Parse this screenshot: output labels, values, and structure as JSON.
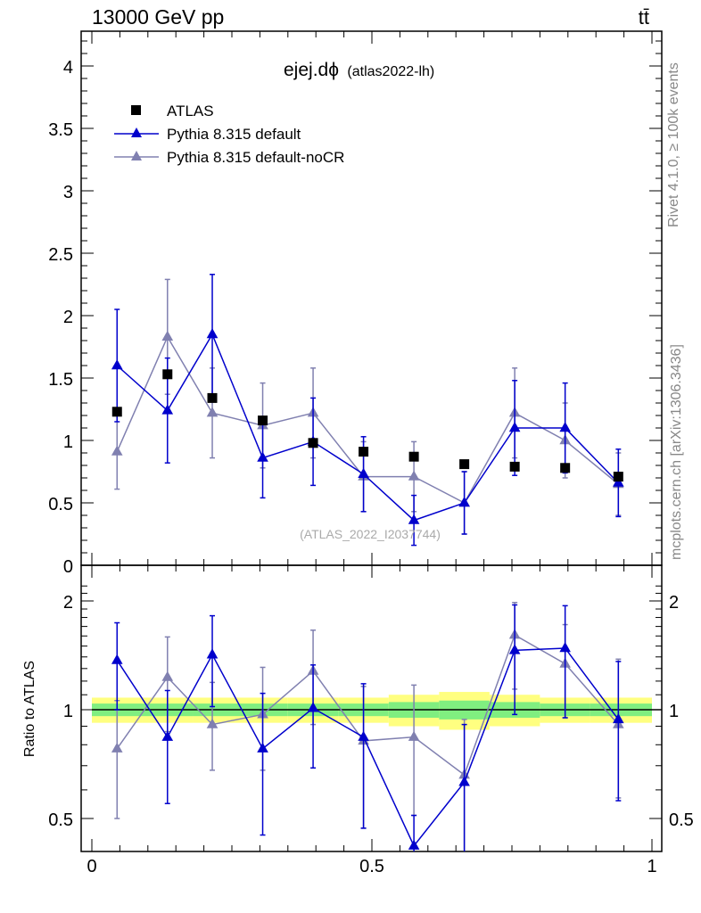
{
  "header": {
    "energy_label": "13000 GeV pp",
    "process_label": "tt̄"
  },
  "side_labels": {
    "rivet": "Rivet 4.1.0, ≥ 100k events",
    "mcplots": "mcplots.cern.ch [arXiv:1306.3436]"
  },
  "colors": {
    "data": "#000000",
    "default": "#0000cc",
    "nocr": "#8080b0",
    "band_inner": "#80ee80",
    "band_outer": "#ffff80"
  },
  "chart_data": [
    {
      "type": "scatter",
      "title": "ejej.dϕ",
      "subtitle": "(atlas2022-lh)",
      "watermark": "(ATLAS_2022_I2037744)",
      "xlabel": "",
      "ylabel": "",
      "xlim": [
        0,
        1
      ],
      "ylim": [
        0,
        4.3
      ],
      "yticks": [
        0,
        0.5,
        1,
        1.5,
        2,
        2.5,
        3,
        3.5,
        4
      ],
      "ytick_labels": [
        "0",
        "0.5",
        "1",
        "1.5",
        "2",
        "2.5",
        "3",
        "3.5",
        "4"
      ],
      "legend_position": "top-left",
      "x": [
        0.045,
        0.135,
        0.215,
        0.305,
        0.395,
        0.485,
        0.575,
        0.665,
        0.755,
        0.845,
        0.94
      ],
      "series": [
        {
          "name": "ATLAS",
          "marker": "square",
          "values": [
            1.23,
            1.53,
            1.34,
            1.16,
            0.98,
            0.91,
            0.87,
            0.81,
            0.79,
            0.78,
            0.71
          ]
        },
        {
          "name": "Pythia 8.315 default",
          "marker": "triangle",
          "values": [
            1.6,
            1.24,
            1.85,
            0.86,
            0.99,
            0.73,
            0.36,
            0.5,
            1.1,
            1.1,
            0.66
          ],
          "errors": [
            0.45,
            0.42,
            0.48,
            0.32,
            0.35,
            0.3,
            0.2,
            0.25,
            0.38,
            0.36,
            0.27
          ]
        },
        {
          "name": "Pythia 8.315 default-noCR",
          "marker": "triangle",
          "values": [
            0.91,
            1.83,
            1.22,
            1.12,
            1.22,
            0.71,
            0.71,
            0.5,
            1.22,
            1.0,
            0.65
          ],
          "errors": [
            0.3,
            0.46,
            0.36,
            0.34,
            0.36,
            0.28,
            0.28,
            0.25,
            0.36,
            0.3,
            0.25
          ]
        }
      ]
    },
    {
      "type": "scatter",
      "title": "",
      "xlabel": "",
      "ylabel": "Ratio to ATLAS",
      "xlim": [
        0,
        1
      ],
      "ylim": [
        0.43,
        2.3
      ],
      "log_y": true,
      "yticks": [
        0.5,
        1,
        2
      ],
      "ytick_labels": [
        "0.5",
        "1",
        "2"
      ],
      "xticks": [
        0,
        0.5,
        1
      ],
      "xtick_labels": [
        "0",
        "0.5",
        "1"
      ],
      "reference_line": 1,
      "x": [
        0.045,
        0.135,
        0.215,
        0.305,
        0.395,
        0.485,
        0.575,
        0.665,
        0.755,
        0.845,
        0.94
      ],
      "bin_edges": [
        0,
        0.09,
        0.18,
        0.25,
        0.35,
        0.44,
        0.53,
        0.62,
        0.71,
        0.8,
        0.89,
        1.0
      ],
      "band_inner": [
        0.04,
        0.04,
        0.04,
        0.04,
        0.04,
        0.04,
        0.05,
        0.06,
        0.05,
        0.04,
        0.04
      ],
      "band_outer": [
        0.08,
        0.08,
        0.08,
        0.08,
        0.08,
        0.08,
        0.1,
        0.12,
        0.1,
        0.08,
        0.08
      ],
      "series": [
        {
          "name": "Pythia 8.315 default",
          "values": [
            1.37,
            0.84,
            1.42,
            0.78,
            1.01,
            0.84,
            0.42,
            0.63,
            1.46,
            1.48,
            0.94
          ],
          "err_low": [
            0.37,
            0.29,
            0.4,
            0.33,
            0.32,
            0.37,
            0.08,
            0.27,
            0.49,
            0.53,
            0.38
          ],
          "err_high": [
            0.37,
            0.29,
            0.4,
            0.33,
            0.32,
            0.34,
            0.09,
            0.28,
            0.49,
            0.46,
            0.42
          ]
        },
        {
          "name": "Pythia 8.315 default-noCR",
          "values": [
            0.78,
            1.23,
            0.91,
            0.97,
            1.28,
            0.82,
            0.84,
            0.66,
            1.61,
            1.34,
            0.91
          ],
          "err_low": [
            0.28,
            0.36,
            0.23,
            0.29,
            0.37,
            0.35,
            0.33,
            0.26,
            0.47,
            0.39,
            0.34
          ],
          "err_high": [
            0.28,
            0.36,
            0.28,
            0.34,
            0.38,
            0.34,
            0.33,
            0.28,
            0.37,
            0.38,
            0.47
          ]
        }
      ]
    }
  ]
}
